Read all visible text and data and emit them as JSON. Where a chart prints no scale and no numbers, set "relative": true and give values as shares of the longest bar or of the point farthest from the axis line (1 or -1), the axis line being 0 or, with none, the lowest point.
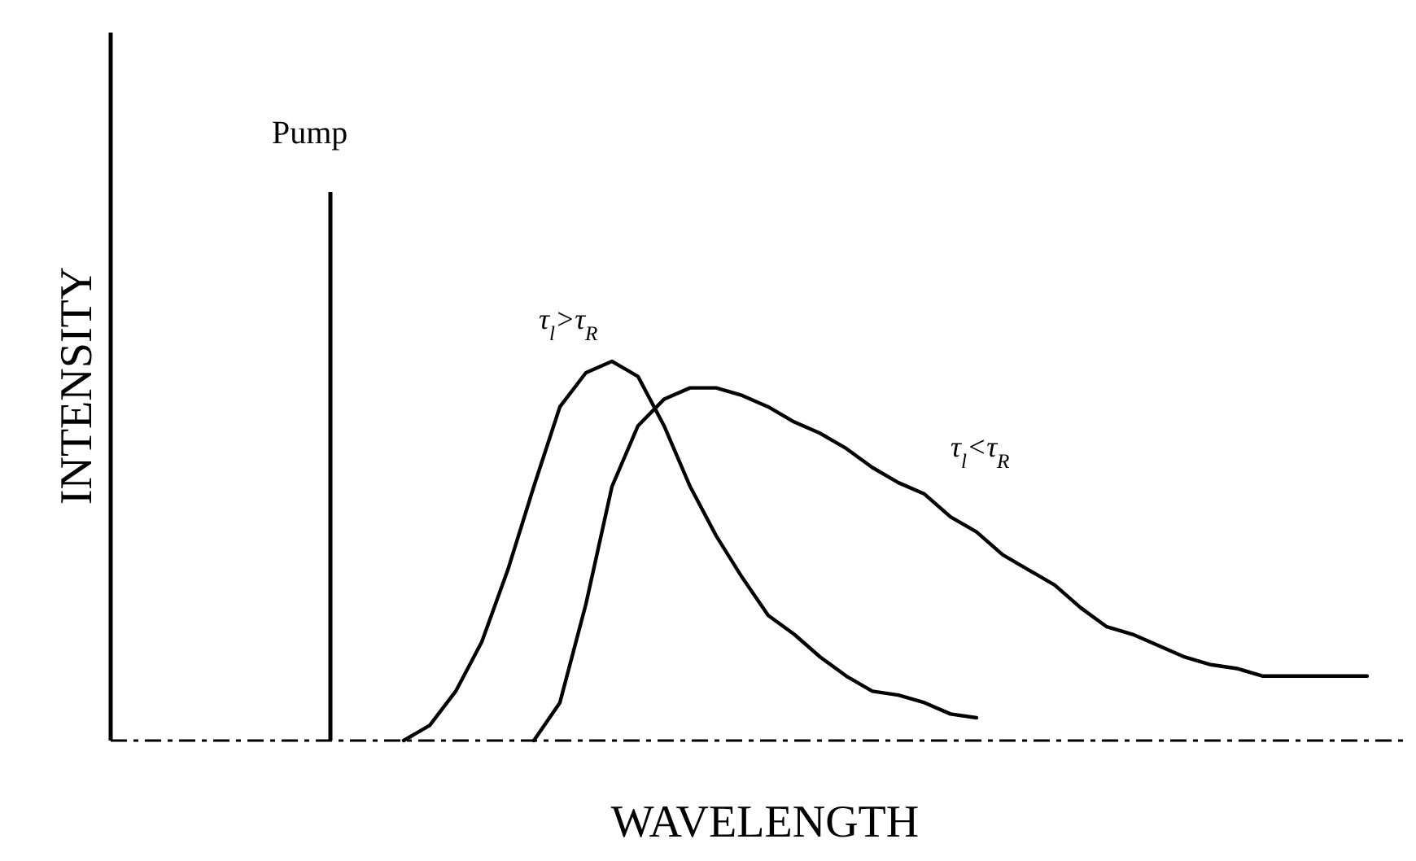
{
  "chart_data": {
    "type": "line",
    "relative": true,
    "xlabel": "WAVELENGTH",
    "ylabel": "INTENSITY",
    "marker": "none",
    "categories": [
      null,
      null,
      null,
      null,
      null,
      null,
      null,
      null,
      null,
      null,
      null,
      null,
      null,
      null,
      null,
      null,
      null,
      null,
      null,
      null,
      null,
      null,
      null,
      null,
      null,
      null,
      null,
      null,
      null,
      null,
      null,
      null,
      null,
      null,
      null,
      null,
      null,
      null,
      null,
      null,
      null
    ],
    "annotations": [
      "Pump"
    ],
    "series": [
      {
        "name": "τ$_{l}$>τ$_{R}$",
        "color": "#000000",
        "values": [
          null,
          null,
          null,
          0,
          0.04,
          0.13,
          0.26,
          0.45,
          0.67,
          0.88,
          0.97,
          1,
          0.96,
          0.83,
          0.67,
          0.54,
          0.43,
          0.33,
          0.28,
          0.22,
          0.17,
          0.13,
          0.12,
          0.1,
          0.07,
          0.06,
          null,
          null,
          null,
          null,
          null,
          null,
          null,
          null,
          null,
          null,
          null,
          null,
          null,
          null,
          null
        ]
      },
      {
        "name": "τ$_{l}$<τ$_{R}$",
        "color": "#000000",
        "values": [
          null,
          null,
          null,
          null,
          null,
          null,
          null,
          null,
          0,
          0.1,
          0.36,
          0.67,
          0.83,
          0.9,
          0.93,
          0.93,
          0.91,
          0.88,
          0.84,
          0.81,
          0.77,
          0.72,
          0.68,
          0.65,
          0.59,
          0.55,
          0.49,
          0.45,
          0.41,
          0.35,
          0.3,
          0.28,
          0.25,
          0.22,
          0.2,
          0.19,
          0.17,
          0.17,
          0.17,
          0.17,
          0.17
        ]
      }
    ]
  }
}
